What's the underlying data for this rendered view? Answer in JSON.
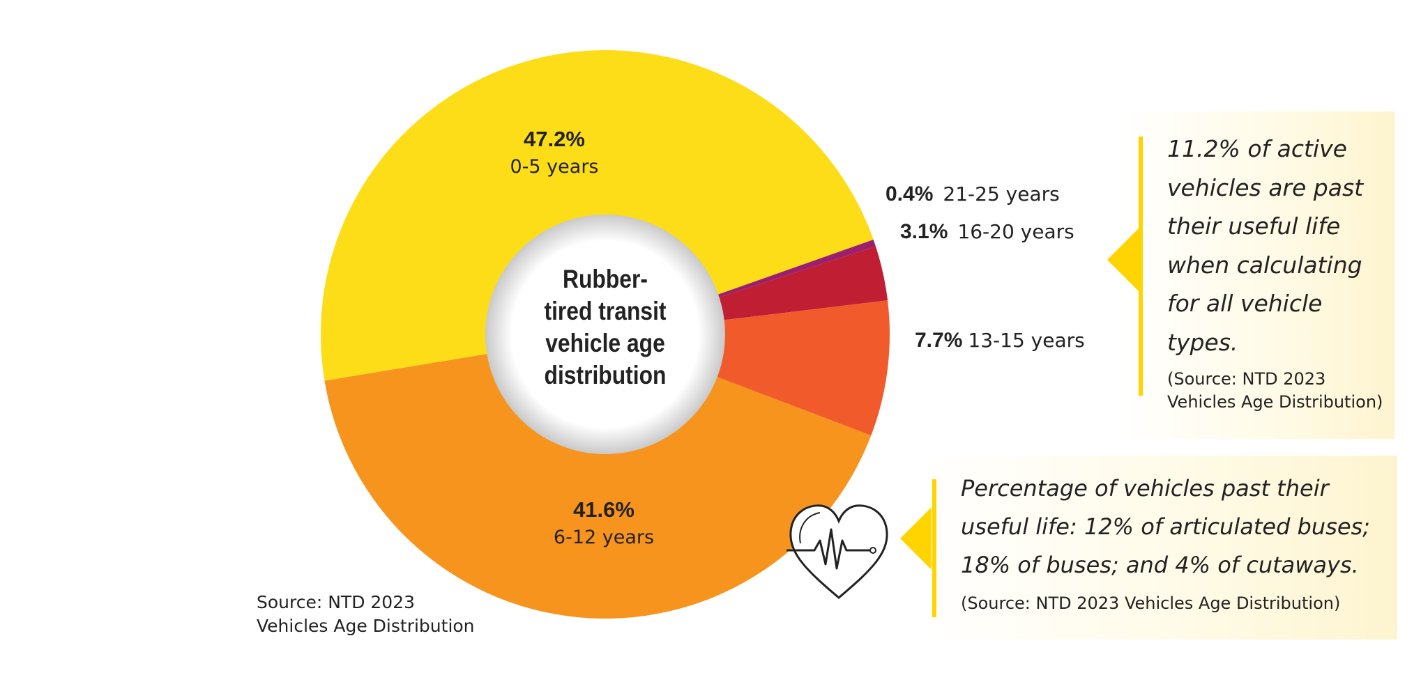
{
  "chart_data": {
    "type": "pie",
    "title": "Rubber-\ntired transit\nvehicle age\ndistribution",
    "slices": [
      {
        "label": "0-5 years",
        "value": 47.2,
        "value_label": "47.2%",
        "color": "#fddd17"
      },
      {
        "label": "21-25 years",
        "value": 0.4,
        "value_label": "0.4%",
        "color": "#9b1f6e"
      },
      {
        "label": "16-20 years",
        "value": 3.1,
        "value_label": "3.1%",
        "color": "#c01f33"
      },
      {
        "label": "13-15 years",
        "value": 7.7,
        "value_label": "7.7%",
        "color": "#f15a2b"
      },
      {
        "label": "6-12 years",
        "value": 41.6,
        "value_label": "41.6%",
        "color": "#f7941d"
      }
    ],
    "source": [
      "Source: NTD 2023",
      "Vehicles Age Distribution"
    ]
  },
  "callouts": [
    {
      "text": "11.2% of active vehicles are past their useful life when calculating for all vehicle types.",
      "source": [
        "(Source: NTD 2023",
        "Vehicles Age Distribution)"
      ]
    },
    {
      "text": "Percentage of vehicles past their useful life: 12% of articulated buses; 18% of buses; and 4% of cutaways.",
      "source": "(Source: NTD 2023 Vehicles Age Distribution)"
    }
  ],
  "icons": {
    "heart": "heartbeat-heart-icon"
  }
}
